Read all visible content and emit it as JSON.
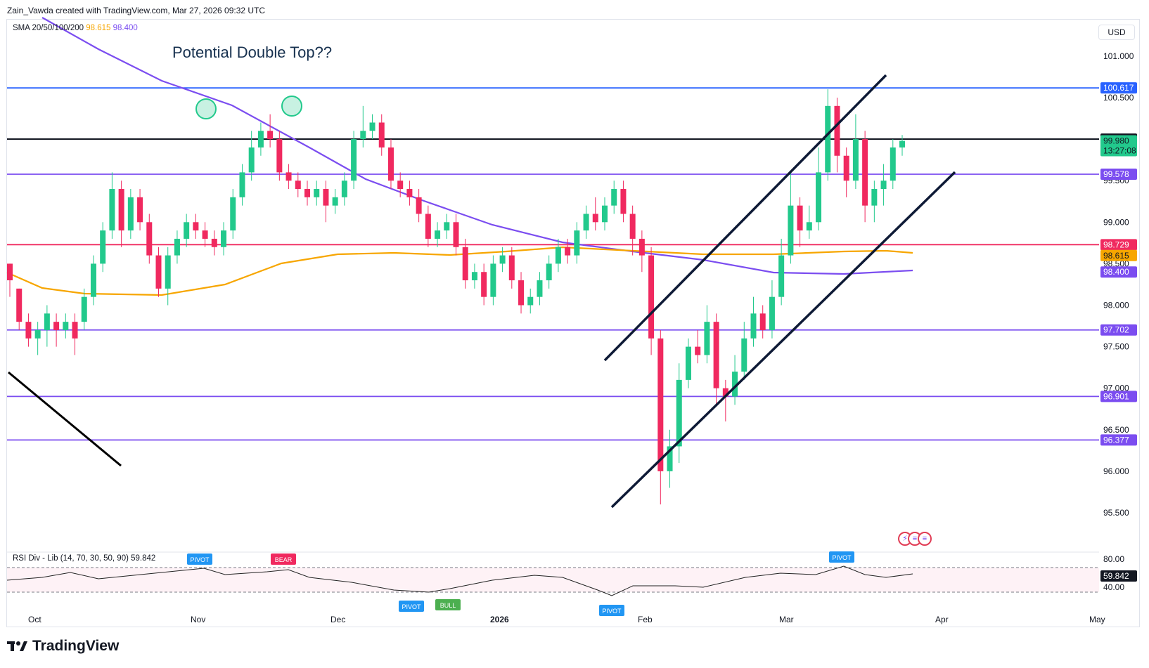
{
  "header": {
    "credit": "Zain_Vawda created with TradingView.com, Mar 27, 2026 09:32 UTC"
  },
  "legend": {
    "sma_label": "SMA 20/50/100/200",
    "sma_value_1": "98.615",
    "sma_value_2": "98.400"
  },
  "annotation": {
    "title": "Potential Double Top??"
  },
  "currency_button": "USD",
  "rsi_legend": {
    "label": "RSI Div - Lib (14, 70, 30, 50, 90)",
    "value": "59.842"
  },
  "logo": {
    "text": "TradingView"
  },
  "colors": {
    "up": "#22c98c",
    "down": "#f0295f",
    "sma_orange": "#f7a600",
    "sma_purple": "#7b4df0",
    "level_purple": "#7b4df0",
    "level_blue": "#2962ff",
    "level_red": "#f0295f",
    "channel": "#0e1a36"
  },
  "chart_data": [
    {
      "type": "candlestick",
      "x_ticks": [
        "Oct",
        "Nov",
        "Dec",
        "2026",
        "Feb",
        "Mar",
        "Apr",
        "May"
      ],
      "y_ticks": [
        "101.000",
        "100.500",
        "99.500",
        "99.000",
        "98.500",
        "98.000",
        "97.500",
        "97.000",
        "96.500",
        "96.000",
        "95.500"
      ],
      "ylim": [
        95.5,
        101.0
      ],
      "horizontal_levels": [
        {
          "value": 100.617,
          "label": "100.617",
          "color": "#2962ff"
        },
        {
          "value": 100.001,
          "label": "100.001",
          "color": "#131722"
        },
        {
          "value": 99.578,
          "label": "99.578",
          "color": "#7b4df0"
        },
        {
          "value": 98.729,
          "label": "98.729",
          "color": "#f0295f"
        },
        {
          "value": 97.702,
          "label": "97.702",
          "color": "#7b4df0"
        },
        {
          "value": 96.901,
          "label": "96.901",
          "color": "#7b4df0"
        },
        {
          "value": 96.377,
          "label": "96.377",
          "color": "#7b4df0"
        }
      ],
      "series_values": [
        {
          "value": 98.615,
          "label": "98.615",
          "color": "#f7a600"
        },
        {
          "value": 98.4,
          "label": "98.400",
          "color": "#7b4df0"
        }
      ],
      "last_price": {
        "label": "99.980",
        "countdown": "13:27:08"
      },
      "candles_ohlc": [
        [
          98.5,
          98.3,
          98.5,
          98.1
        ],
        [
          98.2,
          97.8,
          98.2,
          97.7
        ],
        [
          97.8,
          97.6,
          97.9,
          97.5
        ],
        [
          97.6,
          97.7,
          97.8,
          97.4
        ],
        [
          97.7,
          97.9,
          98.0,
          97.5
        ],
        [
          97.8,
          97.7,
          97.9,
          97.5
        ],
        [
          97.7,
          97.8,
          97.9,
          97.6
        ],
        [
          97.8,
          97.6,
          97.9,
          97.4
        ],
        [
          97.8,
          98.1,
          98.2,
          97.7
        ],
        [
          98.1,
          98.5,
          98.6,
          98.0
        ],
        [
          98.5,
          98.9,
          99.0,
          98.4
        ],
        [
          98.9,
          99.4,
          99.6,
          98.8
        ],
        [
          99.4,
          98.9,
          99.5,
          98.7
        ],
        [
          98.9,
          99.3,
          99.4,
          98.8
        ],
        [
          99.3,
          99.0,
          99.4,
          98.9
        ],
        [
          99.0,
          98.6,
          99.1,
          98.5
        ],
        [
          98.6,
          98.2,
          98.7,
          98.1
        ],
        [
          98.2,
          98.6,
          98.7,
          98.0
        ],
        [
          98.6,
          98.8,
          98.9,
          98.5
        ],
        [
          98.8,
          99.0,
          99.1,
          98.7
        ],
        [
          99.0,
          98.9,
          99.1,
          98.8
        ],
        [
          98.9,
          98.8,
          99.0,
          98.7
        ],
        [
          98.8,
          98.7,
          98.9,
          98.6
        ],
        [
          98.7,
          98.9,
          99.0,
          98.6
        ],
        [
          98.9,
          99.3,
          99.4,
          98.8
        ],
        [
          99.3,
          99.6,
          99.7,
          99.2
        ],
        [
          99.6,
          99.9,
          100.1,
          99.5
        ],
        [
          99.9,
          100.1,
          100.2,
          99.8
        ],
        [
          100.1,
          100.0,
          100.3,
          99.9
        ],
        [
          100.0,
          99.6,
          100.1,
          99.5
        ],
        [
          99.6,
          99.5,
          99.7,
          99.4
        ],
        [
          99.5,
          99.4,
          99.6,
          99.3
        ],
        [
          99.4,
          99.3,
          99.5,
          99.2
        ],
        [
          99.3,
          99.4,
          99.5,
          99.2
        ],
        [
          99.4,
          99.2,
          99.5,
          99.0
        ],
        [
          99.2,
          99.3,
          99.4,
          99.1
        ],
        [
          99.3,
          99.5,
          99.6,
          99.2
        ],
        [
          99.5,
          100.0,
          100.1,
          99.4
        ],
        [
          100.0,
          100.1,
          100.4,
          99.9
        ],
        [
          100.1,
          100.2,
          100.3,
          100.0
        ],
        [
          100.2,
          99.9,
          100.3,
          99.8
        ],
        [
          99.9,
          99.5,
          100.0,
          99.4
        ],
        [
          99.5,
          99.4,
          99.6,
          99.3
        ],
        [
          99.4,
          99.3,
          99.5,
          99.2
        ],
        [
          99.3,
          99.1,
          99.4,
          99.0
        ],
        [
          99.1,
          98.8,
          99.2,
          98.7
        ],
        [
          98.8,
          98.9,
          99.0,
          98.7
        ],
        [
          98.9,
          99.0,
          99.1,
          98.8
        ],
        [
          99.0,
          98.7,
          99.1,
          98.6
        ],
        [
          98.7,
          98.3,
          98.8,
          98.2
        ],
        [
          98.3,
          98.4,
          98.5,
          98.2
        ],
        [
          98.4,
          98.1,
          98.5,
          98.0
        ],
        [
          98.1,
          98.5,
          98.6,
          98.0
        ],
        [
          98.5,
          98.6,
          98.7,
          98.4
        ],
        [
          98.6,
          98.3,
          98.7,
          98.2
        ],
        [
          98.3,
          98.0,
          98.4,
          97.9
        ],
        [
          98.0,
          98.1,
          98.2,
          97.9
        ],
        [
          98.1,
          98.3,
          98.4,
          98.0
        ],
        [
          98.3,
          98.5,
          98.6,
          98.2
        ],
        [
          98.5,
          98.7,
          98.8,
          98.4
        ],
        [
          98.7,
          98.6,
          98.8,
          98.5
        ],
        [
          98.6,
          98.9,
          99.0,
          98.5
        ],
        [
          98.9,
          99.1,
          99.2,
          98.8
        ],
        [
          99.1,
          99.0,
          99.3,
          98.9
        ],
        [
          99.0,
          99.2,
          99.3,
          98.9
        ],
        [
          99.2,
          99.4,
          99.5,
          99.1
        ],
        [
          99.4,
          99.1,
          99.5,
          99.0
        ],
        [
          99.1,
          98.8,
          99.2,
          98.6
        ],
        [
          98.8,
          98.6,
          98.9,
          98.4
        ],
        [
          98.6,
          97.6,
          98.7,
          97.4
        ],
        [
          97.6,
          96.0,
          97.7,
          95.6
        ],
        [
          96.0,
          96.3,
          96.5,
          95.8
        ],
        [
          96.3,
          97.1,
          97.3,
          96.1
        ],
        [
          97.1,
          97.5,
          97.6,
          97.0
        ],
        [
          97.5,
          97.4,
          97.7,
          97.3
        ],
        [
          97.4,
          97.8,
          98.0,
          97.3
        ],
        [
          97.8,
          97.0,
          97.9,
          96.8
        ],
        [
          97.0,
          96.9,
          97.1,
          96.6
        ],
        [
          96.9,
          97.2,
          97.4,
          96.8
        ],
        [
          97.2,
          97.6,
          97.8,
          97.1
        ],
        [
          97.6,
          97.9,
          98.1,
          97.5
        ],
        [
          97.9,
          97.7,
          98.0,
          97.6
        ],
        [
          97.7,
          98.1,
          98.3,
          97.6
        ],
        [
          98.1,
          98.6,
          98.8,
          98.0
        ],
        [
          98.6,
          99.2,
          99.6,
          98.5
        ],
        [
          99.2,
          98.9,
          99.3,
          98.7
        ],
        [
          98.9,
          99.0,
          99.2,
          98.8
        ],
        [
          99.0,
          99.6,
          99.9,
          98.9
        ],
        [
          99.6,
          100.4,
          100.6,
          99.5
        ],
        [
          100.4,
          99.8,
          100.5,
          99.6
        ],
        [
          99.8,
          99.5,
          99.9,
          99.3
        ],
        [
          99.5,
          100.0,
          100.3,
          99.4
        ],
        [
          100.0,
          99.2,
          100.1,
          99.0
        ],
        [
          99.2,
          99.4,
          99.5,
          99.0
        ],
        [
          99.4,
          99.5,
          99.7,
          99.2
        ],
        [
          99.5,
          99.9,
          100.0,
          99.4
        ],
        [
          99.9,
          99.98,
          100.05,
          99.8
        ]
      ]
    },
    {
      "type": "line",
      "title": "RSI Div - Lib (14, 70, 30, 50, 90)",
      "y_ticks": [
        "80.00",
        "40.00"
      ],
      "last_value": "59.842",
      "signal_labels": [
        {
          "text": "PIVOT",
          "kind": "bear",
          "color": "#2196f3"
        },
        {
          "text": "BEAR",
          "kind": "bear",
          "color": "#f0295f"
        },
        {
          "text": "PIVOT",
          "kind": "bull",
          "color": "#2196f3"
        },
        {
          "text": "BULL",
          "kind": "bull",
          "color": "#4caf50"
        },
        {
          "text": "PIVOT",
          "kind": "bull",
          "color": "#2196f3"
        },
        {
          "text": "PIVOT",
          "kind": "bear",
          "color": "#2196f3"
        }
      ]
    }
  ]
}
